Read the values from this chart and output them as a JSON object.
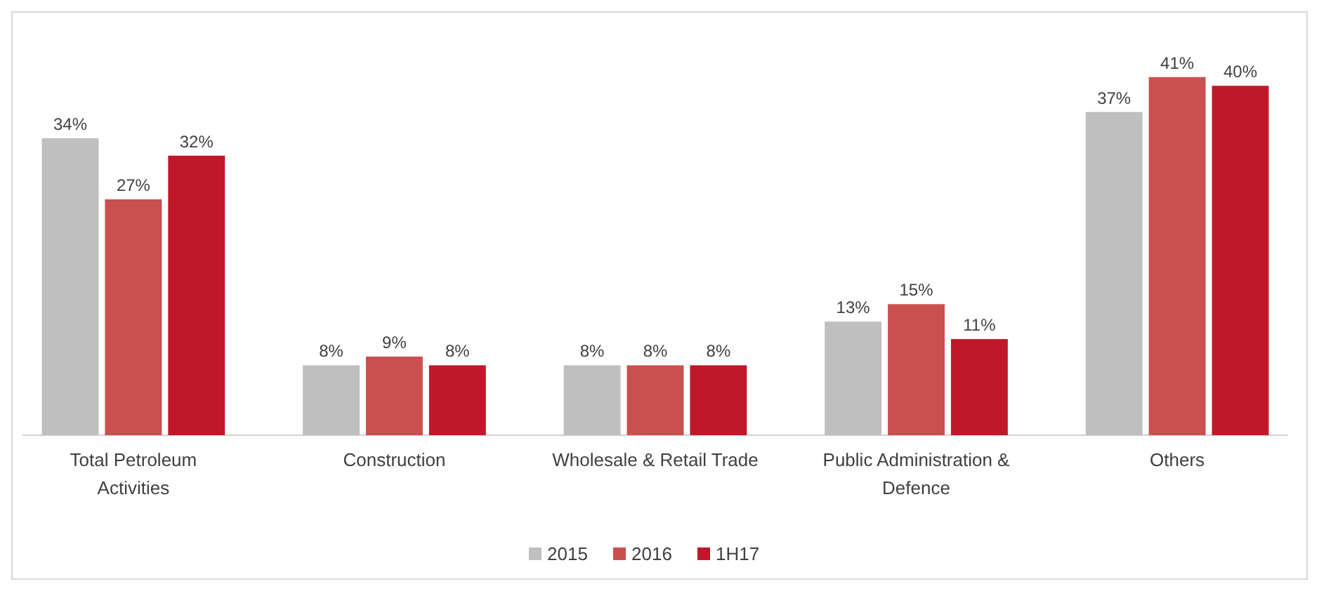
{
  "chart_data": {
    "type": "bar",
    "categories": [
      "Total Petroleum Activities",
      "Construction",
      "Wholesale & Retail Trade",
      "Public Administration & Defence",
      "Others"
    ],
    "series": [
      {
        "name": "2015",
        "color": "#bfbfbf",
        "values": [
          34,
          8,
          8,
          13,
          37
        ],
        "value_labels": [
          "34%",
          "8%",
          "8%",
          "13%",
          "37%"
        ]
      },
      {
        "name": "2016",
        "color": "#c9504f",
        "values": [
          27,
          9,
          8,
          15,
          41
        ],
        "value_labels": [
          "27%",
          "9%",
          "8%",
          "15%",
          "41%"
        ]
      },
      {
        "name": "1H17",
        "color": "#c0182a",
        "values": [
          32,
          8,
          8,
          11,
          40
        ],
        "value_labels": [
          "32%",
          "8%",
          "8%",
          "11%",
          "40%"
        ]
      }
    ],
    "tick_labels": "x",
    "legend": "bottom"
  }
}
